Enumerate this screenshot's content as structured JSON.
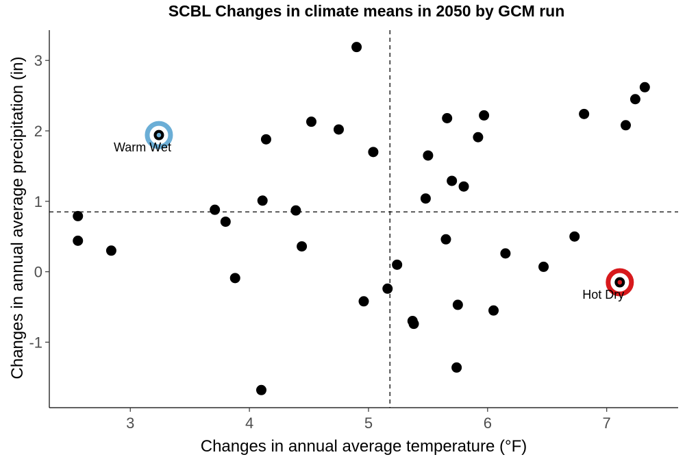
{
  "chart_data": {
    "type": "scatter",
    "title": "SCBL Changes in climate means in 2050 by GCM run",
    "xlabel": "Changes in annual average temperature (°F)",
    "ylabel": "Changes in annual average precipitation (in)",
    "xlim": [
      2.32,
      7.6
    ],
    "ylim": [
      -1.93,
      3.43
    ],
    "xticks": [
      3,
      4,
      5,
      6,
      7
    ],
    "yticks": [
      -1,
      0,
      1,
      2,
      3
    ],
    "ref_lines": {
      "x": 5.18,
      "y": 0.85
    },
    "grid": false,
    "points": [
      {
        "x": 2.56,
        "y": 0.79
      },
      {
        "x": 2.56,
        "y": 0.44
      },
      {
        "x": 2.84,
        "y": 0.3
      },
      {
        "x": 3.24,
        "y": 1.94
      },
      {
        "x": 3.71,
        "y": 0.88
      },
      {
        "x": 3.8,
        "y": 0.71
      },
      {
        "x": 3.88,
        "y": -0.09
      },
      {
        "x": 4.11,
        "y": 1.01
      },
      {
        "x": 4.14,
        "y": 1.88
      },
      {
        "x": 4.1,
        "y": -1.68
      },
      {
        "x": 4.39,
        "y": 0.87
      },
      {
        "x": 4.44,
        "y": 0.36
      },
      {
        "x": 4.52,
        "y": 2.13
      },
      {
        "x": 4.75,
        "y": 2.02
      },
      {
        "x": 4.9,
        "y": 3.19
      },
      {
        "x": 4.96,
        "y": -0.42
      },
      {
        "x": 5.04,
        "y": 1.7
      },
      {
        "x": 5.16,
        "y": -0.24
      },
      {
        "x": 5.24,
        "y": 0.1
      },
      {
        "x": 5.37,
        "y": -0.7
      },
      {
        "x": 5.38,
        "y": -0.74
      },
      {
        "x": 5.48,
        "y": 1.04
      },
      {
        "x": 5.5,
        "y": 1.65
      },
      {
        "x": 5.65,
        "y": 0.46
      },
      {
        "x": 5.66,
        "y": 2.18
      },
      {
        "x": 5.7,
        "y": 1.29
      },
      {
        "x": 5.74,
        "y": -1.36
      },
      {
        "x": 5.75,
        "y": -0.47
      },
      {
        "x": 5.8,
        "y": 1.21
      },
      {
        "x": 5.92,
        "y": 1.91
      },
      {
        "x": 5.97,
        "y": 2.22
      },
      {
        "x": 6.05,
        "y": -0.55
      },
      {
        "x": 6.15,
        "y": 0.26
      },
      {
        "x": 6.47,
        "y": 0.07
      },
      {
        "x": 6.73,
        "y": 0.5
      },
      {
        "x": 6.81,
        "y": 2.24
      },
      {
        "x": 7.11,
        "y": -0.15
      },
      {
        "x": 7.16,
        "y": 2.08
      },
      {
        "x": 7.24,
        "y": 2.45
      },
      {
        "x": 7.32,
        "y": 2.62
      }
    ],
    "highlights": [
      {
        "label": "Warm Wet",
        "x": 3.24,
        "y": 1.94,
        "color": "#6baed6"
      },
      {
        "label": "Hot Dry",
        "x": 7.11,
        "y": -0.15,
        "color": "#d7191c"
      }
    ]
  }
}
